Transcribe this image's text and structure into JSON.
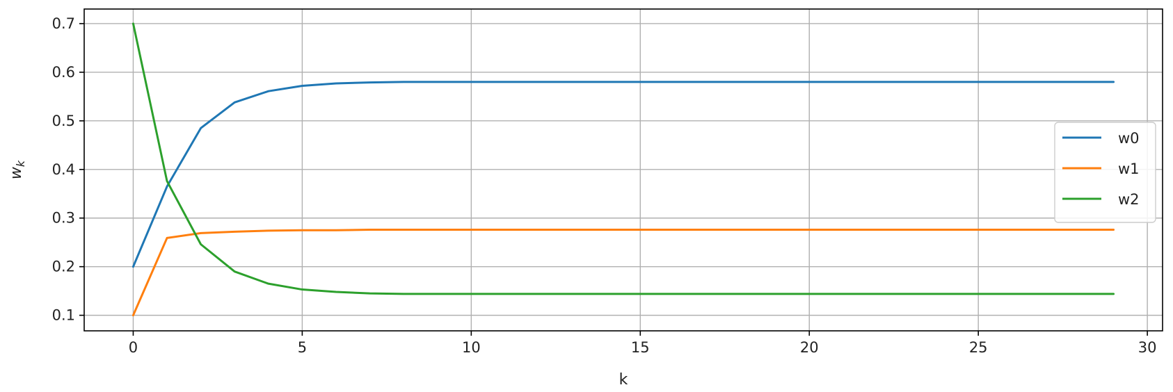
{
  "chart_data": {
    "type": "line",
    "title": "",
    "xlabel": "k",
    "ylabel": "w",
    "ylabel_subscript": "k",
    "xlim": [
      -1.45,
      30.45
    ],
    "ylim": [
      0.068,
      0.73
    ],
    "xticks": [
      0,
      5,
      10,
      15,
      20,
      25,
      30
    ],
    "xtick_labels": [
      "0",
      "5",
      "10",
      "15",
      "20",
      "25",
      "30"
    ],
    "yticks": [
      0.1,
      0.2,
      0.3,
      0.4,
      0.5,
      0.6,
      0.7
    ],
    "ytick_labels": [
      "0.1",
      "0.2",
      "0.3",
      "0.4",
      "0.5",
      "0.6",
      "0.7"
    ],
    "grid": true,
    "legend_position": "center-right",
    "x": [
      0,
      1,
      2,
      3,
      4,
      5,
      6,
      7,
      8,
      9,
      10,
      11,
      12,
      13,
      14,
      15,
      16,
      17,
      18,
      19,
      20,
      21,
      22,
      23,
      24,
      25,
      26,
      27,
      28,
      29
    ],
    "series": [
      {
        "name": "w0",
        "color": "#1f77b4",
        "values": [
          0.2,
          0.365,
          0.485,
          0.538,
          0.561,
          0.572,
          0.577,
          0.579,
          0.58,
          0.58,
          0.58,
          0.58,
          0.58,
          0.58,
          0.58,
          0.58,
          0.58,
          0.58,
          0.58,
          0.58,
          0.58,
          0.58,
          0.58,
          0.58,
          0.58,
          0.58,
          0.58,
          0.58,
          0.58,
          0.58
        ]
      },
      {
        "name": "w1",
        "color": "#ff7f0e",
        "values": [
          0.1,
          0.259,
          0.269,
          0.272,
          0.274,
          0.275,
          0.275,
          0.276,
          0.276,
          0.276,
          0.276,
          0.276,
          0.276,
          0.276,
          0.276,
          0.276,
          0.276,
          0.276,
          0.276,
          0.276,
          0.276,
          0.276,
          0.276,
          0.276,
          0.276,
          0.276,
          0.276,
          0.276,
          0.276,
          0.276
        ]
      },
      {
        "name": "w2",
        "color": "#2ca02c",
        "values": [
          0.7,
          0.376,
          0.246,
          0.19,
          0.165,
          0.153,
          0.148,
          0.145,
          0.144,
          0.144,
          0.144,
          0.144,
          0.144,
          0.144,
          0.144,
          0.144,
          0.144,
          0.144,
          0.144,
          0.144,
          0.144,
          0.144,
          0.144,
          0.144,
          0.144,
          0.144,
          0.144,
          0.144,
          0.144,
          0.144
        ]
      }
    ]
  }
}
